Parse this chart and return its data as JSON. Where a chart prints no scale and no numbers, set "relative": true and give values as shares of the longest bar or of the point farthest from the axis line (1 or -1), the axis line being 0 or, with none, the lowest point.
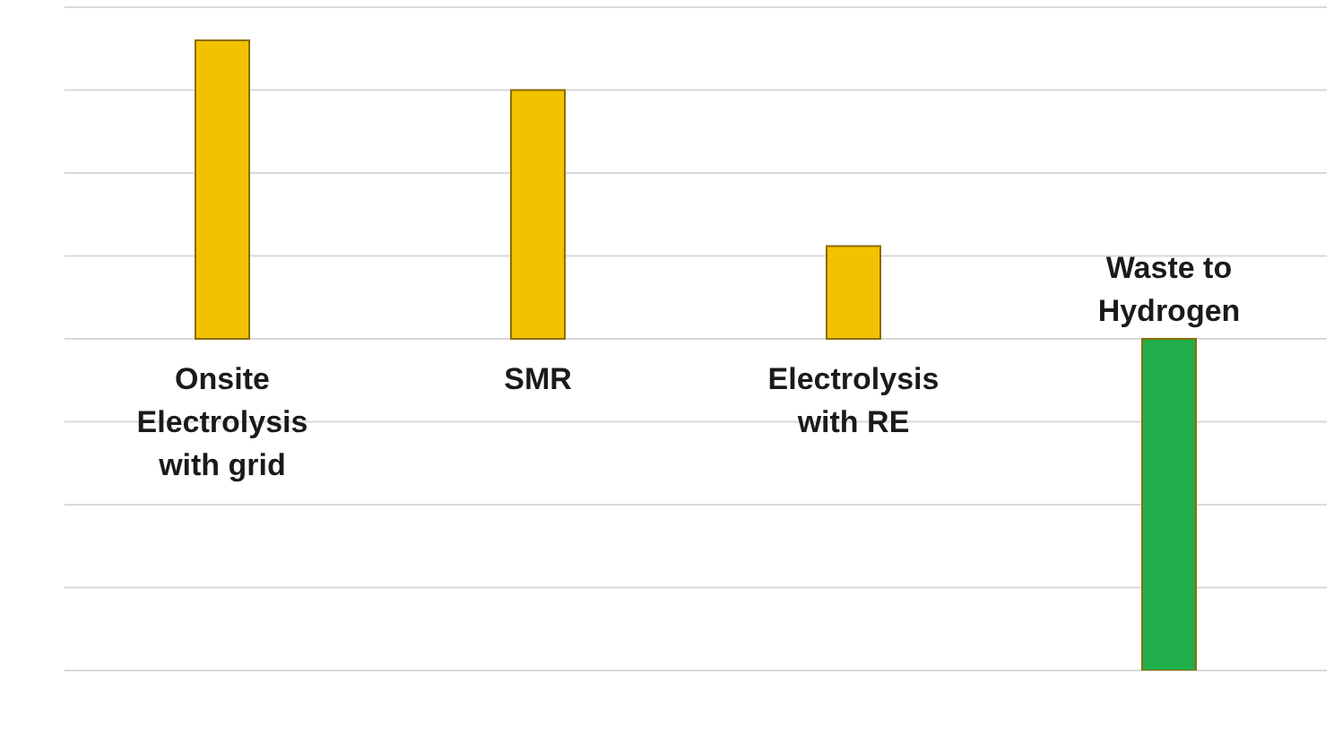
{
  "chart_data": {
    "type": "bar",
    "relative": true,
    "categories": [
      "Onsite Electrolysis with grid",
      "SMR",
      "Electrolysis with RE",
      "Waste to Hydrogen"
    ],
    "values": [
      0.9,
      0.75,
      0.28,
      -1
    ],
    "colors": [
      "#f2c200",
      "#f2c200",
      "#f2c200",
      "#1fae4a"
    ],
    "grid": "y"
  }
}
